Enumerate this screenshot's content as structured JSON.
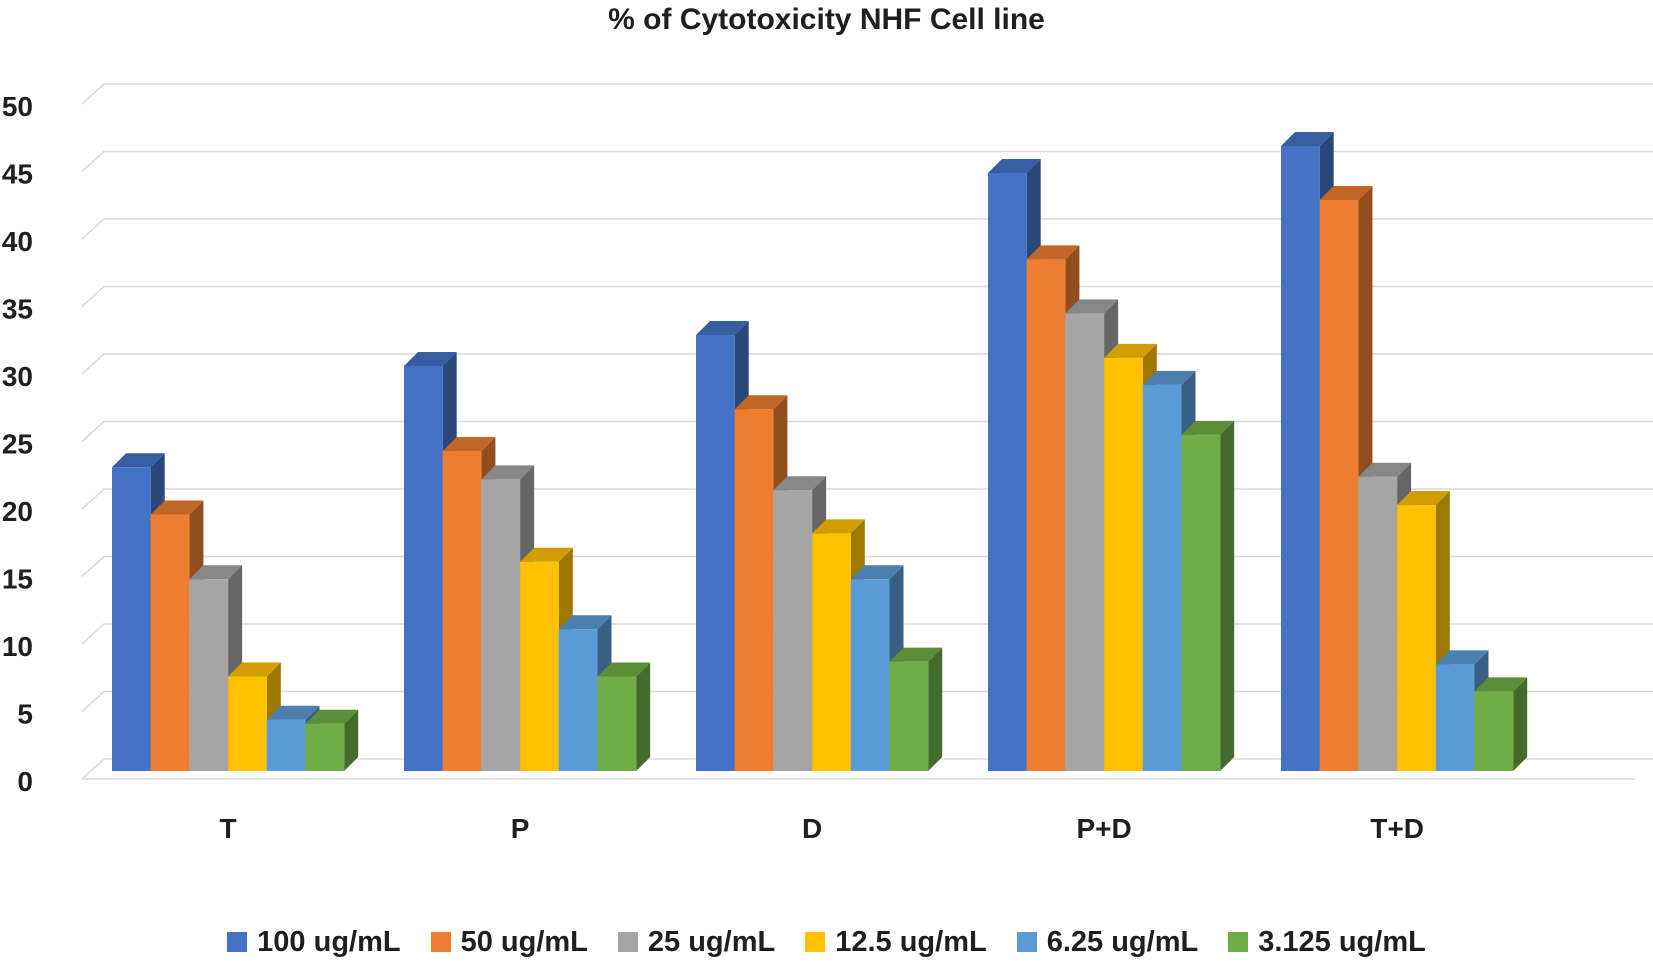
{
  "chart_data": {
    "type": "bar",
    "title": "% of Cytotoxicity NHF Cell line",
    "xlabel": "",
    "ylabel": "",
    "ylim": [
      0,
      50
    ],
    "y_ticks": [
      "0",
      "5",
      "10",
      "15",
      "20",
      "25",
      "30",
      "35",
      "40",
      "45",
      "50"
    ],
    "categories": [
      "T",
      "P",
      "D",
      "P+D",
      "T+D"
    ],
    "grid": true,
    "legend_position": "bottom",
    "style": "3d-clustered-column",
    "series": [
      {
        "name": "100 ug/mL",
        "color": "#4472C4",
        "values": [
          22.5,
          30,
          32.3,
          44.3,
          46.3
        ]
      },
      {
        "name": "50 ug/mL",
        "color": "#ED7D31",
        "values": [
          19,
          23.7,
          26.8,
          37.9,
          42.3
        ]
      },
      {
        "name": "25 ug/mL",
        "color": "#A5A5A5",
        "values": [
          14.2,
          21.6,
          20.8,
          33.9,
          21.8
        ]
      },
      {
        "name": "12.5 ug/mL",
        "color": "#FFC000",
        "values": [
          7,
          15.5,
          17.6,
          30.6,
          19.7
        ]
      },
      {
        "name": "6.25 ug/mL",
        "color": "#5B9BD5",
        "values": [
          3.8,
          10.5,
          14.2,
          28.6,
          7.9
        ]
      },
      {
        "name": "3.125 ug/mL",
        "color": "#70AD47",
        "values": [
          3.5,
          7,
          8.1,
          24.9,
          5.9
        ]
      }
    ]
  }
}
